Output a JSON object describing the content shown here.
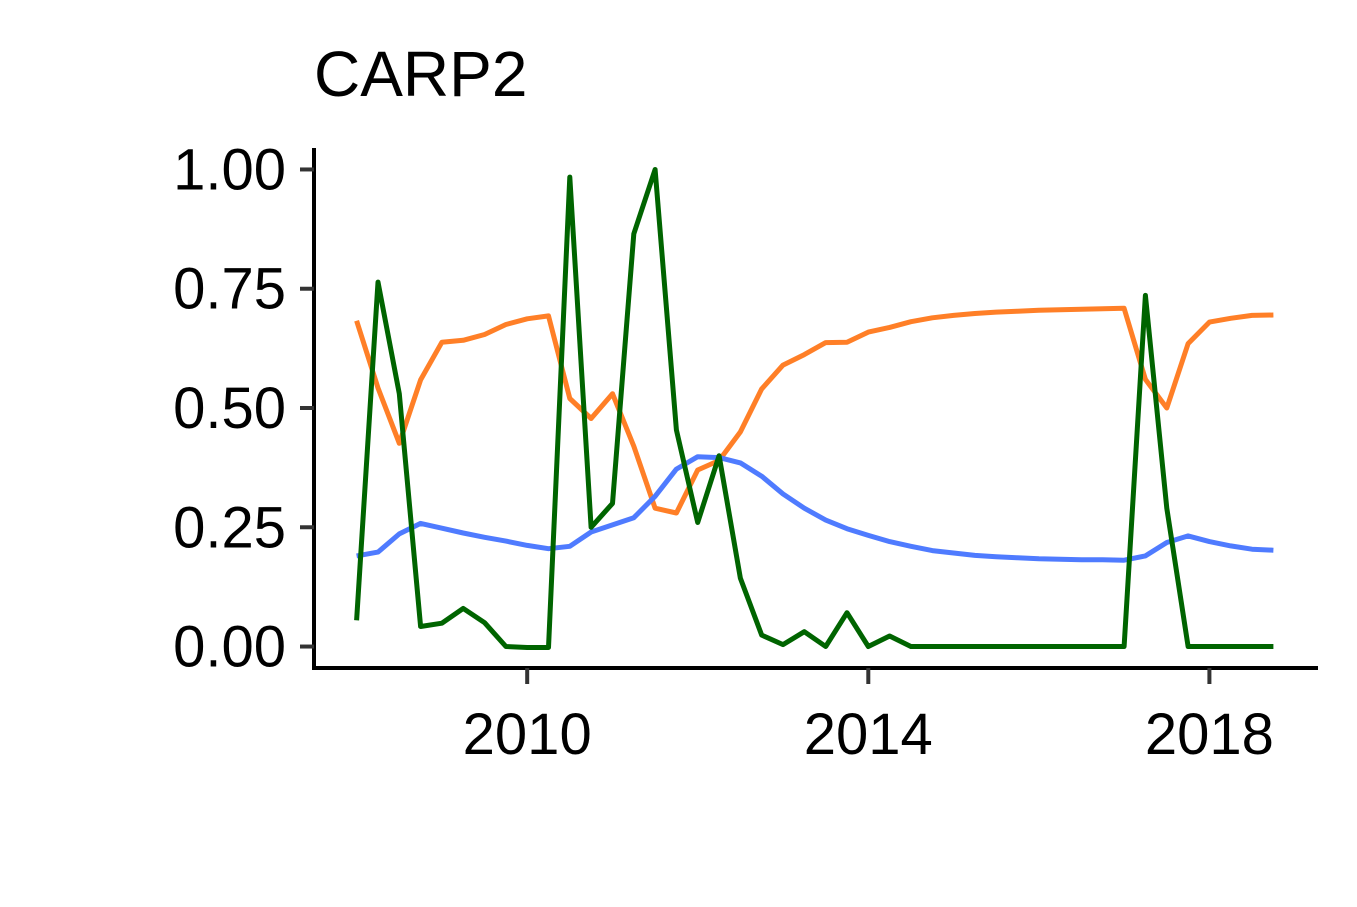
{
  "chart_data": {
    "type": "line",
    "title": "CARP2",
    "xlabel": "",
    "ylabel": "",
    "xlim": [
      2007.5,
      2019.25
    ],
    "ylim": [
      -0.045,
      1.045
    ],
    "x_ticks": [
      2010,
      2014,
      2018
    ],
    "x_tick_labels": [
      "2010",
      "2014",
      "2018"
    ],
    "y_ticks": [
      0,
      0.25,
      0.5,
      0.75,
      1
    ],
    "y_tick_labels": [
      "0.00",
      "0.25",
      "0.50",
      "0.75",
      "1.00"
    ],
    "grid": false,
    "legend": "none",
    "x": [
      2008.0,
      2008.25,
      2008.5,
      2008.75,
      2009.0,
      2009.25,
      2009.5,
      2009.75,
      2010.0,
      2010.25,
      2010.5,
      2010.75,
      2011.0,
      2011.25,
      2011.5,
      2011.75,
      2012.0,
      2012.25,
      2012.5,
      2012.75,
      2013.0,
      2013.25,
      2013.5,
      2013.75,
      2014.0,
      2014.25,
      2014.5,
      2014.75,
      2015.0,
      2015.25,
      2015.5,
      2015.75,
      2016.0,
      2016.25,
      2016.5,
      2016.75,
      2017.0,
      2017.25,
      2017.5,
      2017.75,
      2018.0,
      2018.25,
      2018.5,
      2018.75
    ],
    "series": [
      {
        "color": "#FF7F27",
        "values": [
          0.683,
          0.542,
          0.426,
          0.559,
          0.638,
          0.642,
          0.654,
          0.675,
          0.687,
          0.693,
          0.52,
          0.478,
          0.53,
          0.42,
          0.29,
          0.28,
          0.37,
          0.39,
          0.45,
          0.54,
          0.59,
          0.612,
          0.637,
          0.638,
          0.659,
          0.669,
          0.681,
          0.689,
          0.694,
          0.698,
          0.701,
          0.703,
          0.705,
          0.706,
          0.707,
          0.708,
          0.709,
          0.56,
          0.5,
          0.635,
          0.68,
          0.688,
          0.694,
          0.695
        ]
      },
      {
        "color": "#4F7BFF",
        "values": [
          0.19,
          0.198,
          0.236,
          0.258,
          0.248,
          0.238,
          0.229,
          0.221,
          0.212,
          0.205,
          0.21,
          0.24,
          0.255,
          0.27,
          0.315,
          0.372,
          0.398,
          0.396,
          0.385,
          0.357,
          0.32,
          0.29,
          0.265,
          0.247,
          0.233,
          0.22,
          0.21,
          0.201,
          0.196,
          0.191,
          0.188,
          0.186,
          0.184,
          0.183,
          0.182,
          0.182,
          0.181,
          0.19,
          0.218,
          0.232,
          0.22,
          0.211,
          0.204,
          0.202
        ]
      },
      {
        "color": "#006400",
        "values": [
          0.055,
          0.764,
          0.53,
          0.042,
          0.049,
          0.08,
          0.05,
          0.0,
          -0.002,
          -0.002,
          0.984,
          0.25,
          0.3,
          0.865,
          1.0,
          0.454,
          0.26,
          0.4,
          0.143,
          0.024,
          0.004,
          0.031,
          0.0,
          0.071,
          0.0,
          0.022,
          0.0,
          0.0,
          0.0,
          0.0,
          0.0,
          0.0,
          0.0,
          0.0,
          0.0,
          0.0,
          0.0,
          0.736,
          0.29,
          0.0,
          0.0,
          0.0,
          0.0,
          0.0
        ]
      }
    ]
  }
}
